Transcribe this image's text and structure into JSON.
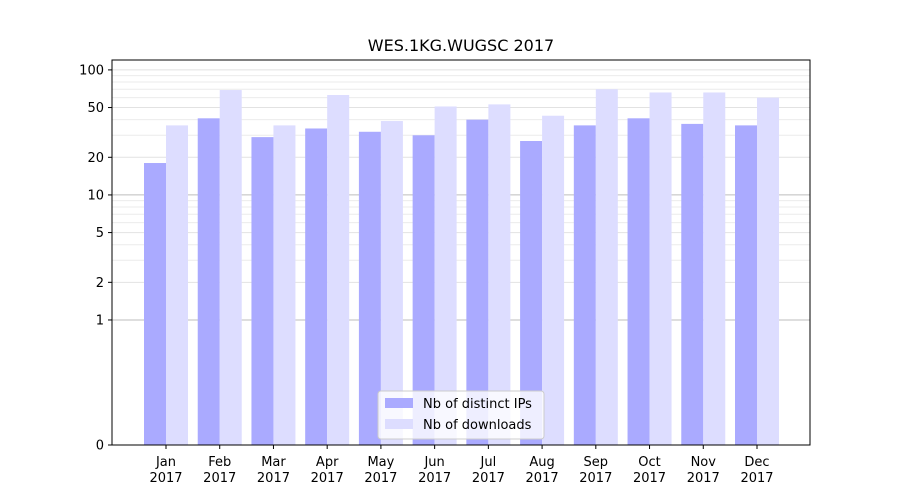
{
  "chart_data": {
    "type": "bar",
    "title": "WES.1KG.WUGSC 2017",
    "xlabel": "",
    "ylabel": "",
    "yscale": "symlog",
    "ylim": [
      0,
      120
    ],
    "yticks": [
      0,
      1,
      2,
      5,
      10,
      20,
      50,
      100
    ],
    "ytick_labels": [
      "0",
      "1",
      "2",
      "5",
      "10",
      "20",
      "50",
      "100"
    ],
    "grid": true,
    "legend_position": "bottom-center",
    "categories": [
      {
        "month": "Jan",
        "year": "2017"
      },
      {
        "month": "Feb",
        "year": "2017"
      },
      {
        "month": "Mar",
        "year": "2017"
      },
      {
        "month": "Apr",
        "year": "2017"
      },
      {
        "month": "May",
        "year": "2017"
      },
      {
        "month": "Jun",
        "year": "2017"
      },
      {
        "month": "Jul",
        "year": "2017"
      },
      {
        "month": "Aug",
        "year": "2017"
      },
      {
        "month": "Sep",
        "year": "2017"
      },
      {
        "month": "Oct",
        "year": "2017"
      },
      {
        "month": "Nov",
        "year": "2017"
      },
      {
        "month": "Dec",
        "year": "2017"
      }
    ],
    "series": [
      {
        "name": "Nb of distinct IPs",
        "color": "#aaaaff",
        "values": [
          18,
          41,
          29,
          34,
          32,
          30,
          40,
          27,
          36,
          41,
          37,
          36
        ]
      },
      {
        "name": "Nb of downloads",
        "color": "#ddddff",
        "values": [
          36,
          69,
          36,
          63,
          39,
          51,
          53,
          43,
          70,
          66,
          66,
          60
        ]
      }
    ]
  }
}
